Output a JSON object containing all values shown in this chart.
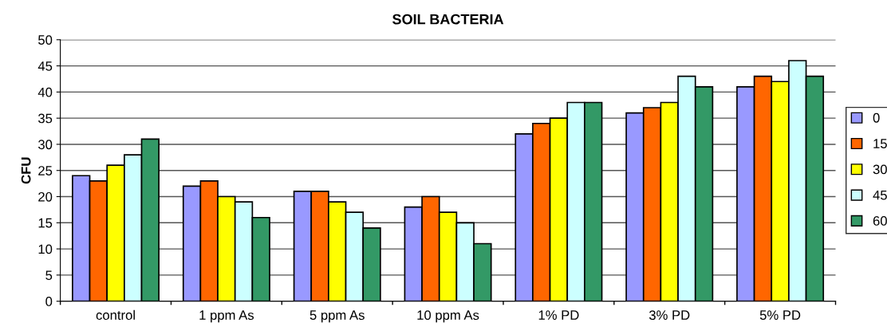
{
  "chart_data": {
    "type": "bar",
    "title": "SOIL BACTERIA",
    "ylabel": "CFU",
    "categories": [
      "control",
      "1 ppm As",
      "5 ppm As",
      "10 ppm As",
      "1% PD",
      "3% PD",
      "5% PD"
    ],
    "series": [
      {
        "name": "0",
        "color": "#9999ff",
        "values": [
          24,
          22,
          21,
          18,
          32,
          36,
          41
        ]
      },
      {
        "name": "15",
        "color": "#ff6600",
        "values": [
          23,
          23,
          21,
          20,
          34,
          37,
          43
        ]
      },
      {
        "name": "30",
        "color": "#ffff00",
        "values": [
          26,
          20,
          19,
          17,
          35,
          38,
          42
        ]
      },
      {
        "name": "45",
        "color": "#ccffff",
        "values": [
          28,
          19,
          17,
          15,
          38,
          43,
          46
        ]
      },
      {
        "name": "60",
        "color": "#339966",
        "values": [
          31,
          16,
          14,
          11,
          38,
          41,
          43
        ]
      }
    ],
    "ylim": [
      0,
      50
    ],
    "yticks": [
      0,
      5,
      10,
      15,
      20,
      25,
      30,
      35,
      40,
      45,
      50
    ],
    "grid": "y",
    "legend": "right"
  }
}
